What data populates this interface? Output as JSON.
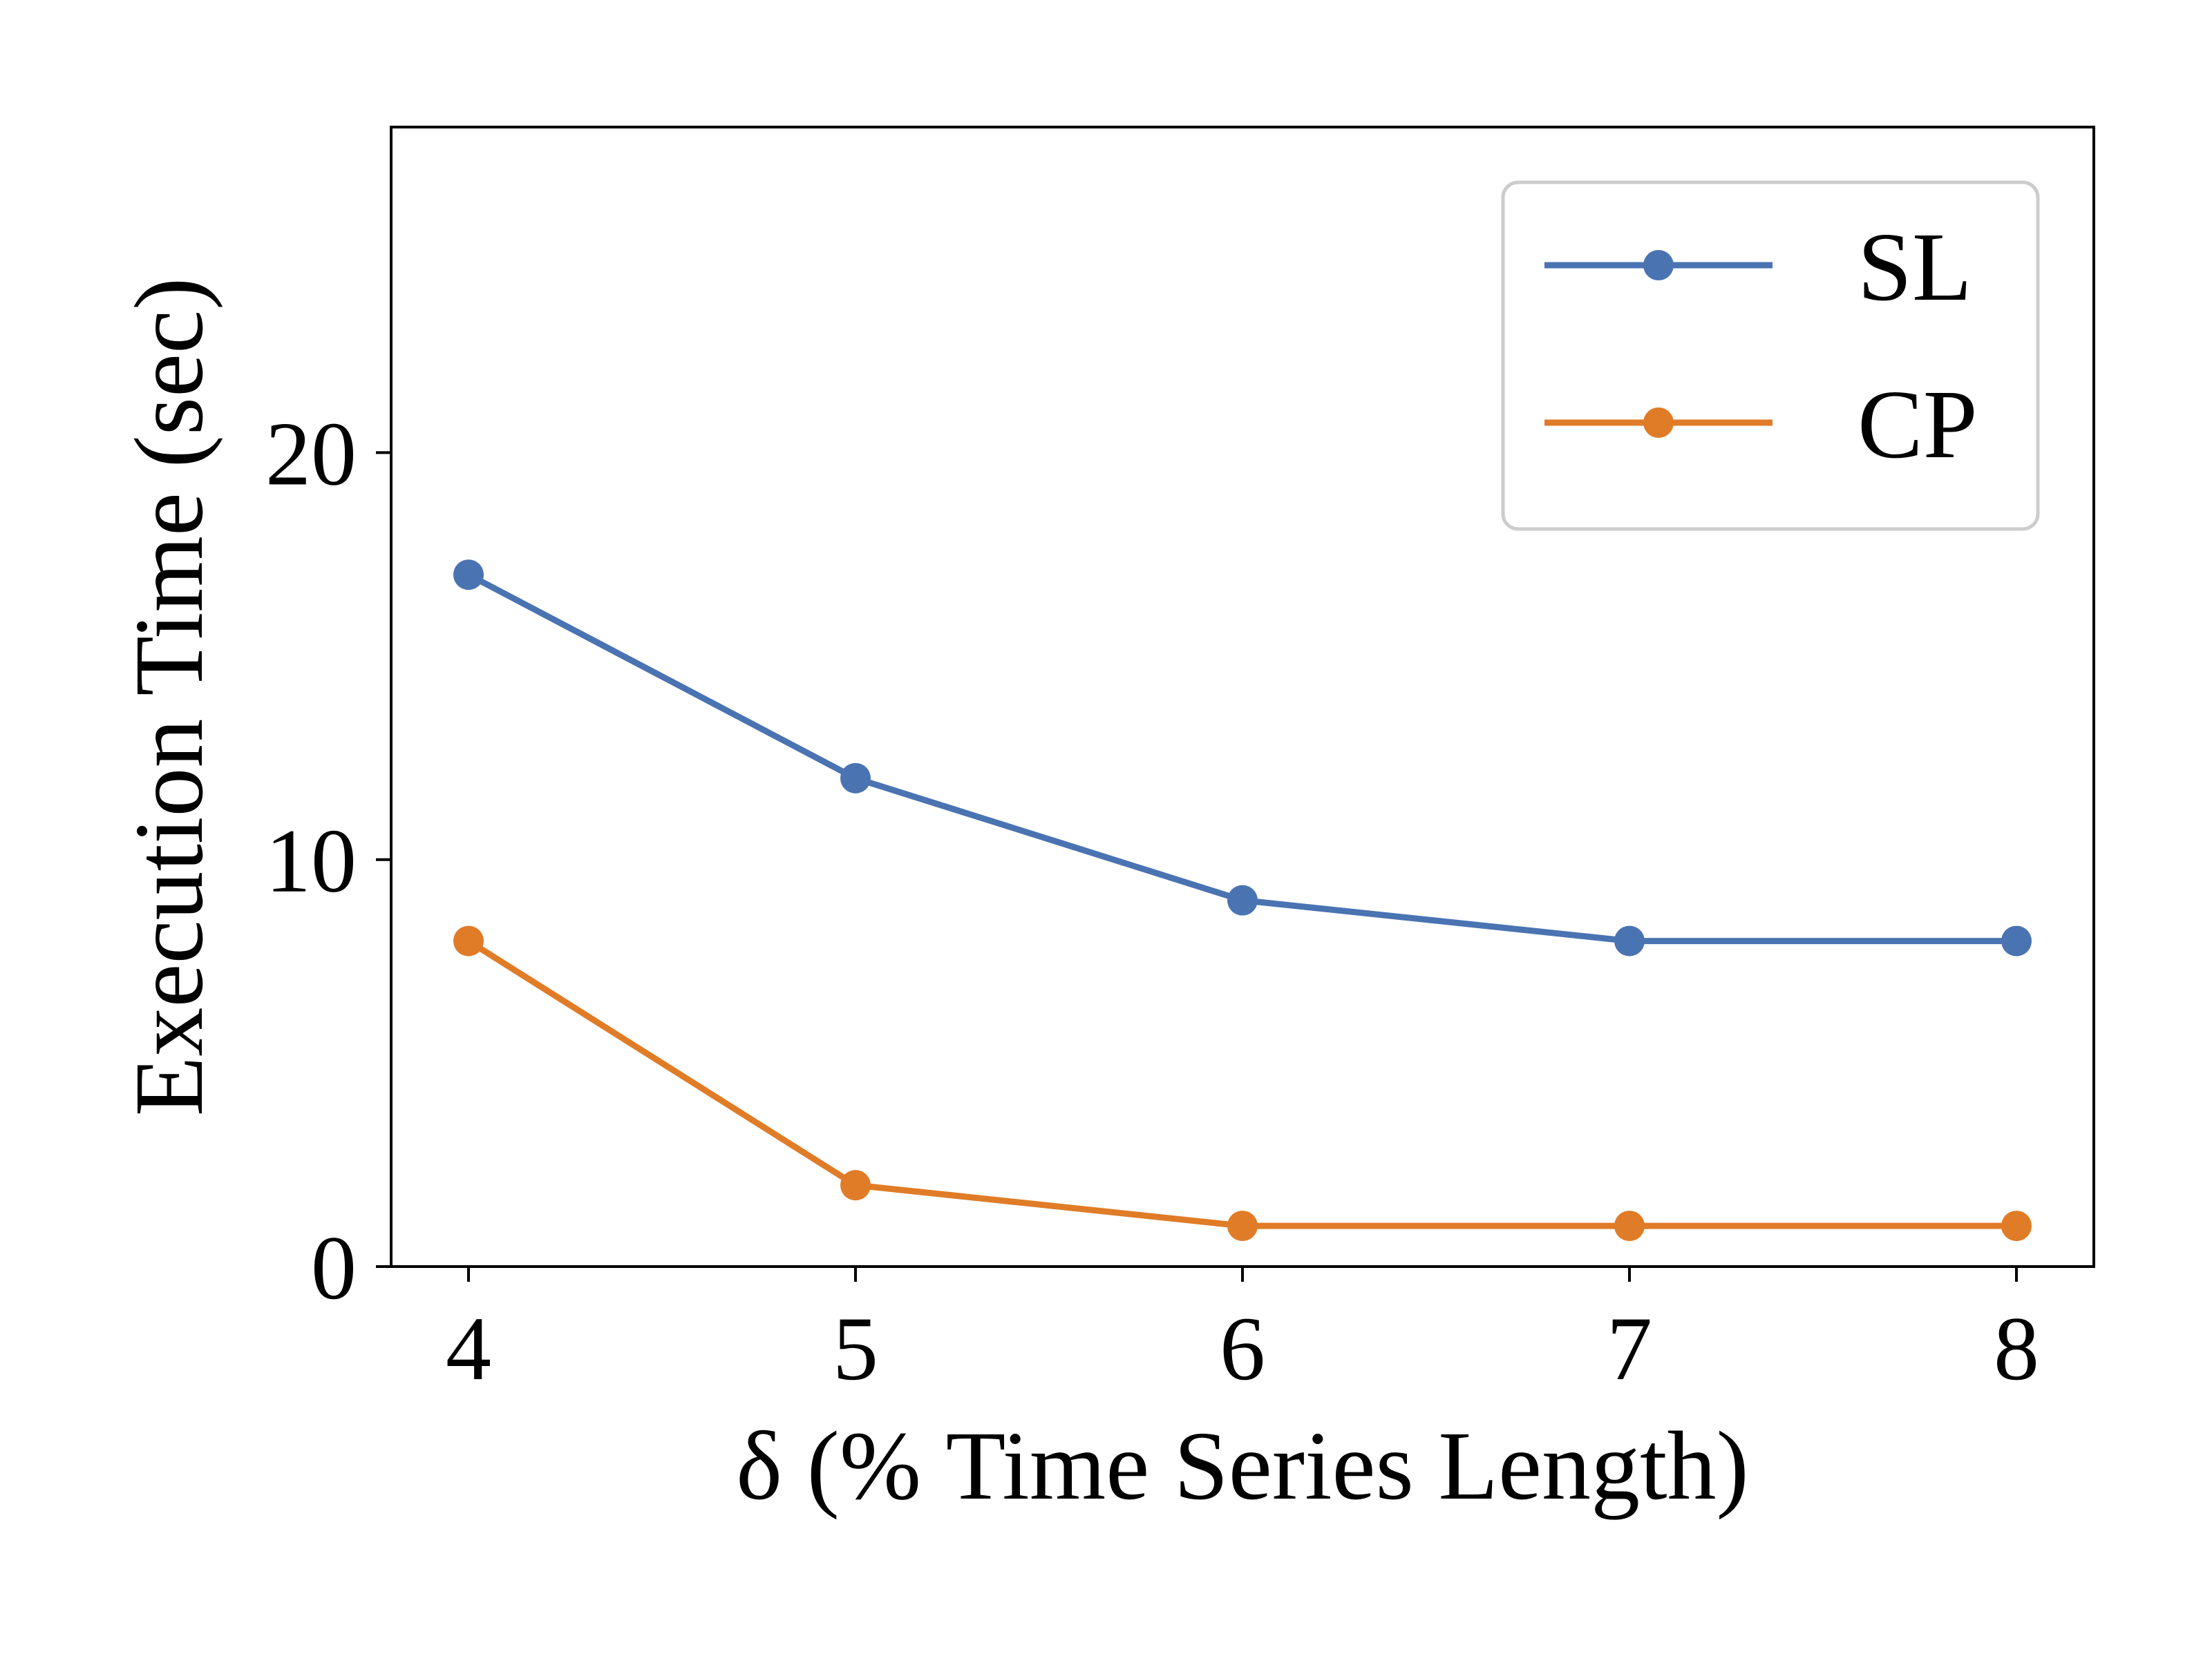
{
  "chart_data": {
    "type": "line",
    "title": "",
    "xlabel": "δ (% Time Series Length)",
    "ylabel": "Execution Time (sec)",
    "x": [
      4,
      5,
      6,
      7,
      8
    ],
    "xlim": [
      3.8,
      8.2
    ],
    "ylim": [
      0,
      28
    ],
    "xticks": [
      4,
      5,
      6,
      7,
      8
    ],
    "yticks": [
      0,
      10,
      20
    ],
    "grid": false,
    "legend_position": "top-right",
    "series": [
      {
        "name": "SL",
        "values": [
          17,
          12,
          9,
          8,
          8
        ],
        "color": "#4a73b2",
        "marker": "circle"
      },
      {
        "name": "CP",
        "values": [
          8,
          2,
          1,
          1,
          1
        ],
        "color": "#e07c27",
        "marker": "circle"
      }
    ]
  }
}
